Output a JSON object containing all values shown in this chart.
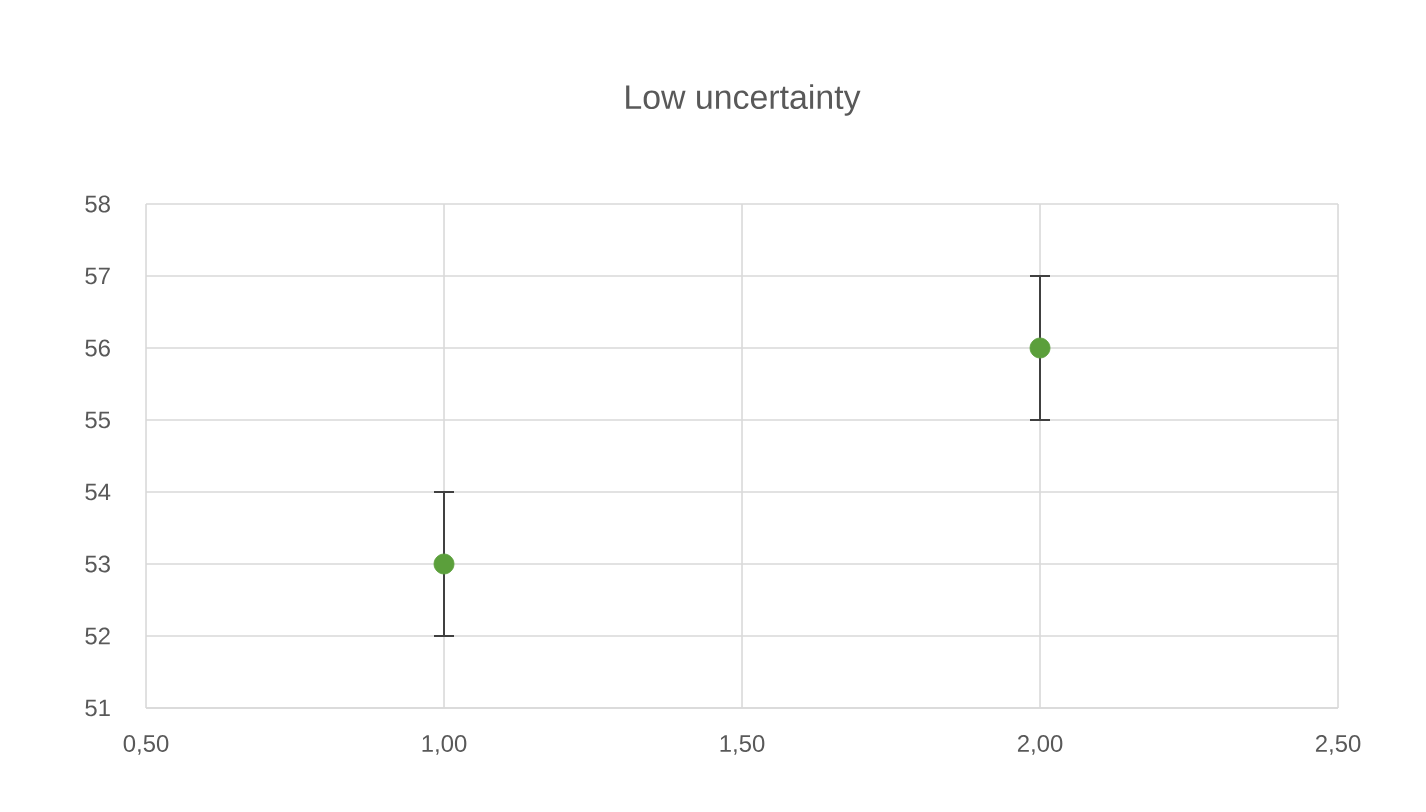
{
  "chart_data": {
    "type": "scatter",
    "title": "Low uncertainty",
    "x": [
      1,
      2
    ],
    "values": [
      53,
      56
    ],
    "errors": [
      1,
      1
    ],
    "color": "#5b9f3b",
    "marker": "circle",
    "xlim": [
      0.5,
      2.5
    ],
    "xticks": [
      {
        "value": 0.5,
        "label": "0,50"
      },
      {
        "value": 1,
        "label": "1,00"
      },
      {
        "value": 1.5,
        "label": "1,50"
      },
      {
        "value": 2,
        "label": "2,00"
      },
      {
        "value": 2.5,
        "label": "2,50"
      }
    ],
    "ylim": [
      51,
      58
    ],
    "yticks": [
      51,
      52,
      53,
      54,
      55,
      56,
      57,
      58
    ],
    "grid": true
  }
}
